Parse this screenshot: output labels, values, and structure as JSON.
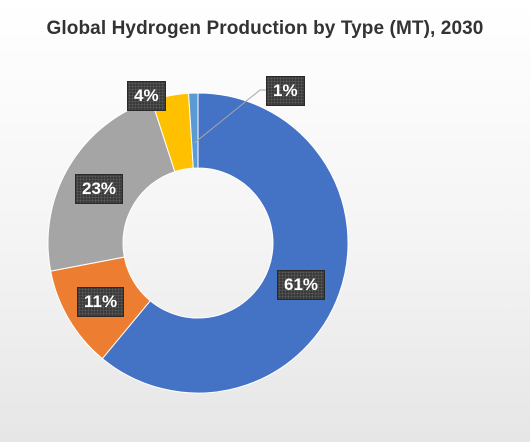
{
  "chart_data": {
    "type": "pie",
    "title": "Global Hydrogen Production by Type (MT), 2030",
    "slices": [
      {
        "label": "61%",
        "value": 61,
        "color": "#4472c4"
      },
      {
        "label": "11%",
        "value": 11,
        "color": "#ed7d31"
      },
      {
        "label": "23%",
        "value": 23,
        "color": "#a5a5a5"
      },
      {
        "label": "4%",
        "value": 4,
        "color": "#ffc000"
      },
      {
        "label": "1%",
        "value": 1,
        "color": "#5b9bd5"
      }
    ],
    "legend": "none",
    "style": "donut"
  }
}
